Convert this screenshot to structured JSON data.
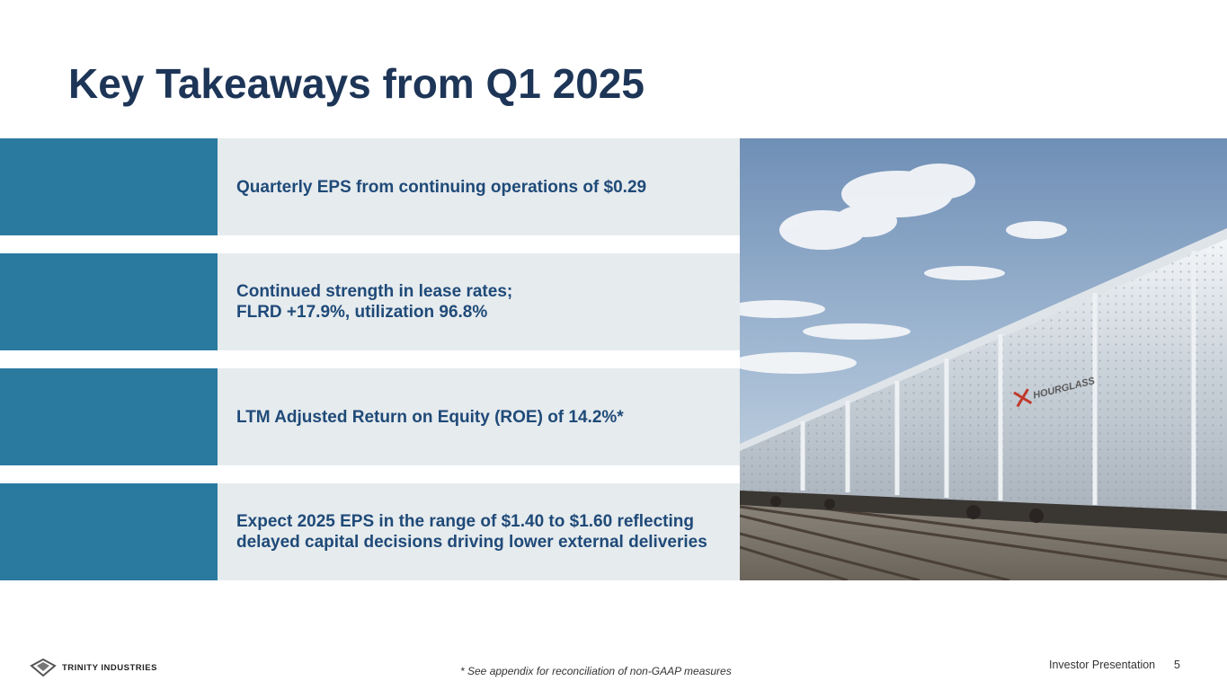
{
  "slide": {
    "title": "Key Takeaways from Q1 2025"
  },
  "takeaways": [
    {
      "text": "Quarterly EPS from continuing operations of $0.29"
    },
    {
      "text": "Continued strength in lease rates;\nFLRD +17.9%, utilization 96.8%"
    },
    {
      "text": "LTM Adjusted Return on Equity (ROE) of 14.2%*"
    },
    {
      "text": "Expect 2025 EPS in the range of $1.40 to $1.60 reflecting\ndelayed capital decisions driving lower external deliveries"
    }
  ],
  "photo": {
    "railcar_brand": "HOURGLASS"
  },
  "footer": {
    "logo_text": "TRINITY INDUSTRIES",
    "footnote": "* See appendix for reconciliation of non-GAAP measures",
    "label": "Investor Presentation",
    "page_number": "5"
  },
  "colors": {
    "title": "#1d3557",
    "accent_bar": "#2a7aa0",
    "panel_bg": "#e6ebee",
    "takeaway_text": "#1f4a78"
  }
}
